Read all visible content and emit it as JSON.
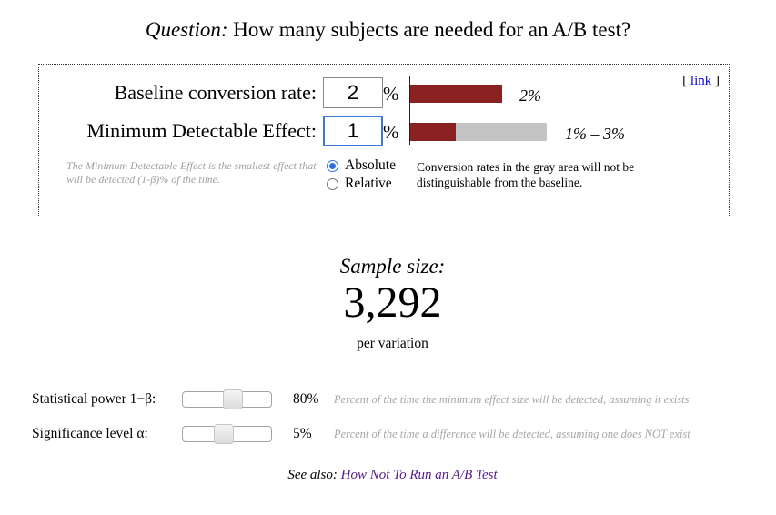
{
  "question": {
    "label": "Question:",
    "text": " How many subjects are needed for an A/B test?"
  },
  "calculator": {
    "baseline": {
      "label": "Baseline conversion rate:",
      "value": "2",
      "unit": "%",
      "bar_fraction": 0.67,
      "bar_text": "2%"
    },
    "mde": {
      "label": "Minimum Detectable Effect:",
      "value": "1",
      "unit": "%",
      "bar_range_fraction": 1.0,
      "bar_text": "1% – 3%"
    },
    "link": {
      "open": "[ ",
      "label": "link",
      "close": " ]"
    },
    "mde_note": "The Minimum Detectable Effect is the smallest effect that will be detected (1-β)% of the time.",
    "mode_options": [
      {
        "label": "Absolute",
        "checked": true
      },
      {
        "label": "Relative",
        "checked": false
      }
    ],
    "gray_note": "Conversion rates in the gray area will not be distinguishable from the baseline."
  },
  "result": {
    "label": "Sample size:",
    "value": "3,292",
    "sublabel": "per variation"
  },
  "settings": {
    "power": {
      "label": "Statistical power 1−β:",
      "value": "80%",
      "slider_fraction": 0.58,
      "note": "Percent of the time the minimum effect size will be detected, assuming it exists"
    },
    "significance": {
      "label": "Significance level α:",
      "value": "5%",
      "slider_fraction": 0.45,
      "note": "Percent of the time a difference will be detected, assuming one does NOT exist"
    }
  },
  "see_also": {
    "label": "See also: ",
    "link_text": "How Not To Run an A/B Test"
  },
  "colors": {
    "bar_red": "#8b2222",
    "bar_gray": "#c4c4c4",
    "link_blue": "#0000ee",
    "visited_purple": "#551a8b",
    "focus_blue": "#3b78d8"
  }
}
